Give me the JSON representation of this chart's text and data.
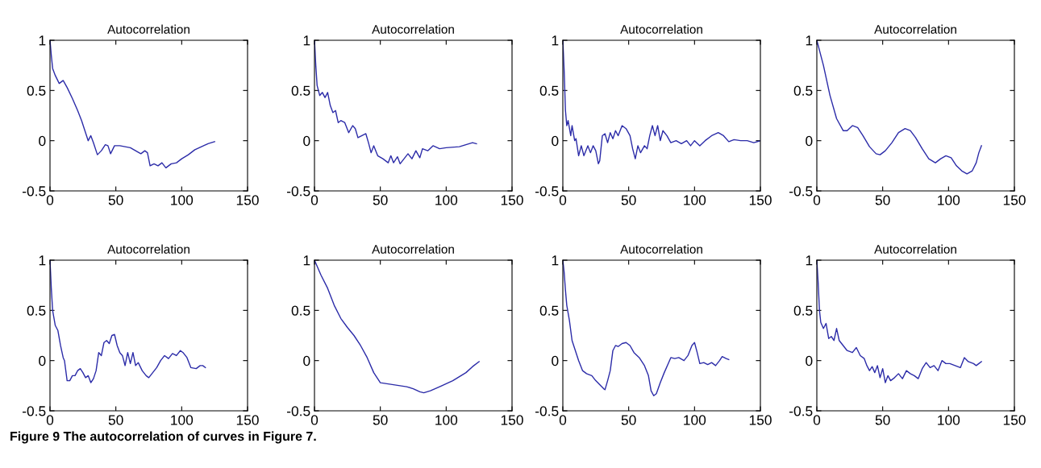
{
  "chart_data": [
    {
      "type": "line",
      "title": "Autocorrelation",
      "xlim": [
        0,
        150
      ],
      "ylim": [
        -0.5,
        1
      ],
      "xticks": [
        0,
        50,
        100,
        150
      ],
      "yticks": [
        -0.5,
        0,
        0.5,
        1
      ],
      "x": [
        0,
        1,
        2,
        4,
        7,
        10,
        13,
        17,
        21,
        24,
        27,
        29,
        31,
        33,
        36,
        39,
        42,
        44,
        46,
        49,
        53,
        57,
        61,
        65,
        69,
        72,
        74,
        76,
        79,
        82,
        85,
        88,
        92,
        96,
        100,
        105,
        110,
        115,
        120,
        125
      ],
      "series": [
        {
          "color": "#2b2ba8",
          "values": [
            1,
            0.85,
            0.72,
            0.65,
            0.57,
            0.6,
            0.53,
            0.42,
            0.3,
            0.2,
            0.08,
            0.0,
            0.05,
            -0.02,
            -0.14,
            -0.1,
            -0.04,
            -0.05,
            -0.13,
            -0.05,
            -0.05,
            -0.06,
            -0.07,
            -0.1,
            -0.13,
            -0.1,
            -0.12,
            -0.25,
            -0.23,
            -0.25,
            -0.22,
            -0.27,
            -0.23,
            -0.22,
            -0.18,
            -0.14,
            -0.09,
            -0.06,
            -0.03,
            -0.01
          ]
        }
      ]
    },
    {
      "type": "line",
      "title": "Autocorrelation",
      "xlim": [
        0,
        150
      ],
      "ylim": [
        -0.5,
        1
      ],
      "xticks": [
        0,
        50,
        100,
        150
      ],
      "yticks": [
        -0.5,
        0,
        0.5,
        1
      ],
      "x": [
        0,
        1,
        2,
        4,
        6,
        8,
        10,
        12,
        14,
        16,
        18,
        20,
        23,
        26,
        29,
        31,
        33,
        36,
        39,
        41,
        43,
        45,
        48,
        52,
        56,
        58,
        60,
        63,
        65,
        68,
        71,
        74,
        77,
        80,
        82,
        86,
        90,
        95,
        100,
        110,
        115,
        120,
        123
      ],
      "series": [
        {
          "color": "#2b2ba8",
          "values": [
            1,
            0.75,
            0.55,
            0.45,
            0.48,
            0.43,
            0.48,
            0.35,
            0.28,
            0.3,
            0.18,
            0.2,
            0.18,
            0.08,
            0.15,
            0.12,
            0.03,
            0.05,
            0.07,
            -0.02,
            -0.12,
            -0.05,
            -0.15,
            -0.18,
            -0.22,
            -0.15,
            -0.22,
            -0.16,
            -0.23,
            -0.18,
            -0.13,
            -0.18,
            -0.1,
            -0.17,
            -0.08,
            -0.1,
            -0.05,
            -0.08,
            -0.07,
            -0.06,
            -0.04,
            -0.02,
            -0.03
          ]
        }
      ]
    },
    {
      "type": "line",
      "title": "Autocorrelation",
      "xlim": [
        0,
        150
      ],
      "ylim": [
        -0.5,
        1
      ],
      "xticks": [
        0,
        50,
        100,
        150
      ],
      "yticks": [
        -0.5,
        0,
        0.5,
        1
      ],
      "x": [
        0,
        1,
        2,
        3,
        4,
        6,
        7,
        9,
        10,
        12,
        14,
        16,
        19,
        21,
        23,
        25,
        27,
        28,
        30,
        32,
        34,
        36,
        38,
        40,
        42,
        45,
        48,
        51,
        53,
        55,
        57,
        59,
        62,
        64,
        66,
        68,
        70,
        72,
        74,
        76,
        79,
        82,
        86,
        90,
        94,
        97,
        100,
        104,
        108,
        113,
        118,
        122,
        126,
        130,
        135,
        140,
        145,
        150
      ],
      "series": [
        {
          "color": "#2b2ba8",
          "values": [
            1,
            0.7,
            0.3,
            0.15,
            0.2,
            0.05,
            0.15,
            0.0,
            0.02,
            -0.15,
            -0.05,
            -0.15,
            -0.05,
            -0.12,
            -0.05,
            -0.1,
            -0.23,
            -0.2,
            0.05,
            0.07,
            -0.02,
            0.08,
            0.02,
            0.1,
            0.05,
            0.15,
            0.12,
            0.05,
            -0.08,
            -0.18,
            -0.05,
            -0.12,
            -0.05,
            -0.08,
            0.05,
            0.15,
            0.05,
            0.15,
            0.0,
            0.1,
            0.05,
            -0.02,
            0.0,
            -0.03,
            0.0,
            -0.05,
            0.0,
            -0.05,
            0.0,
            0.05,
            0.08,
            0.05,
            -0.01,
            0.01,
            0.0,
            0.0,
            -0.02,
            0.0
          ]
        }
      ]
    },
    {
      "type": "line",
      "title": "Autocorrelation",
      "xlim": [
        0,
        150
      ],
      "ylim": [
        -0.5,
        1
      ],
      "xticks": [
        0,
        50,
        100,
        150
      ],
      "yticks": [
        -0.5,
        0,
        0.5,
        1
      ],
      "x": [
        0,
        5,
        10,
        15,
        20,
        23,
        27,
        31,
        35,
        40,
        45,
        48,
        52,
        57,
        62,
        67,
        71,
        75,
        80,
        85,
        90,
        94,
        98,
        102,
        106,
        110,
        114,
        118,
        121,
        123,
        125
      ],
      "series": [
        {
          "color": "#2b2ba8",
          "values": [
            1,
            0.75,
            0.45,
            0.22,
            0.1,
            0.1,
            0.15,
            0.13,
            0.05,
            -0.06,
            -0.13,
            -0.14,
            -0.1,
            -0.02,
            0.08,
            0.12,
            0.1,
            0.03,
            -0.08,
            -0.18,
            -0.22,
            -0.18,
            -0.15,
            -0.17,
            -0.25,
            -0.3,
            -0.33,
            -0.3,
            -0.22,
            -0.12,
            -0.05
          ]
        }
      ]
    },
    {
      "type": "line",
      "title": "Autocorrelation",
      "xlim": [
        0,
        150
      ],
      "ylim": [
        -0.5,
        1
      ],
      "xticks": [
        0,
        50,
        100,
        150
      ],
      "yticks": [
        -0.5,
        0,
        0.5,
        1
      ],
      "x": [
        0,
        1,
        2,
        4,
        6,
        8,
        10,
        11,
        12,
        13,
        15,
        17,
        19,
        21,
        23,
        25,
        27,
        29,
        31,
        33,
        35,
        37,
        39,
        41,
        43,
        45,
        47,
        49,
        51,
        53,
        55,
        57,
        59,
        61,
        63,
        65,
        67,
        70,
        73,
        75,
        78,
        81,
        84,
        87,
        90,
        93,
        96,
        99,
        101,
        104,
        107,
        111,
        114,
        116,
        118
      ],
      "series": [
        {
          "color": "#2b2ba8",
          "values": [
            1,
            0.72,
            0.5,
            0.35,
            0.3,
            0.15,
            0.03,
            0.0,
            -0.1,
            -0.2,
            -0.2,
            -0.15,
            -0.15,
            -0.1,
            -0.08,
            -0.12,
            -0.17,
            -0.15,
            -0.22,
            -0.18,
            -0.1,
            0.08,
            0.05,
            0.18,
            0.2,
            0.17,
            0.25,
            0.26,
            0.15,
            0.08,
            0.05,
            -0.05,
            0.08,
            -0.03,
            0.08,
            -0.05,
            -0.02,
            -0.1,
            -0.15,
            -0.17,
            -0.12,
            -0.07,
            0.0,
            0.05,
            0.02,
            0.07,
            0.05,
            0.1,
            0.08,
            0.03,
            -0.07,
            -0.08,
            -0.05,
            -0.05,
            -0.07
          ]
        }
      ]
    },
    {
      "type": "line",
      "title": "Autocorrelation",
      "xlim": [
        0,
        150
      ],
      "ylim": [
        -0.5,
        1
      ],
      "xticks": [
        0,
        50,
        100,
        150
      ],
      "yticks": [
        -0.5,
        0,
        0.5,
        1
      ],
      "x": [
        0,
        5,
        10,
        15,
        20,
        25,
        30,
        35,
        40,
        45,
        50,
        55,
        60,
        65,
        70,
        75,
        80,
        83,
        88,
        95,
        100,
        105,
        110,
        115,
        120,
        125
      ],
      "series": [
        {
          "color": "#2b2ba8",
          "values": [
            1,
            0.85,
            0.72,
            0.55,
            0.42,
            0.33,
            0.25,
            0.15,
            0.03,
            -0.12,
            -0.22,
            -0.23,
            -0.24,
            -0.25,
            -0.26,
            -0.28,
            -0.31,
            -0.32,
            -0.3,
            -0.26,
            -0.23,
            -0.2,
            -0.16,
            -0.12,
            -0.06,
            -0.01
          ]
        }
      ]
    },
    {
      "type": "line",
      "title": "Autocorrelation",
      "xlim": [
        0,
        150
      ],
      "ylim": [
        -0.5,
        1
      ],
      "xticks": [
        0,
        50,
        100,
        150
      ],
      "yticks": [
        -0.5,
        0,
        0.5,
        1
      ],
      "x": [
        0,
        1,
        2,
        3,
        5,
        7,
        9,
        12,
        15,
        18,
        22,
        25,
        28,
        31,
        32,
        34,
        36,
        38,
        40,
        42,
        45,
        48,
        51,
        54,
        58,
        62,
        65,
        67,
        69,
        71,
        74,
        77,
        80,
        82,
        85,
        88,
        92,
        95,
        98,
        100,
        102,
        104,
        107,
        110,
        113,
        116,
        119,
        121,
        124,
        126
      ],
      "series": [
        {
          "color": "#2b2ba8",
          "values": [
            1,
            0.88,
            0.7,
            0.55,
            0.4,
            0.2,
            0.12,
            0.0,
            -0.1,
            -0.13,
            -0.15,
            -0.2,
            -0.24,
            -0.28,
            -0.29,
            -0.2,
            -0.1,
            0.1,
            0.15,
            0.14,
            0.17,
            0.18,
            0.15,
            0.08,
            0.03,
            -0.05,
            -0.15,
            -0.3,
            -0.35,
            -0.33,
            -0.22,
            -0.12,
            -0.03,
            0.03,
            0.02,
            0.03,
            0.0,
            0.05,
            0.15,
            0.18,
            0.08,
            -0.03,
            -0.02,
            -0.04,
            -0.02,
            -0.05,
            0.0,
            0.04,
            0.02,
            0.01
          ]
        }
      ]
    },
    {
      "type": "line",
      "title": "Autocorrelation",
      "xlim": [
        0,
        150
      ],
      "ylim": [
        -0.5,
        1
      ],
      "xticks": [
        0,
        50,
        100,
        150
      ],
      "yticks": [
        -0.5,
        0,
        0.5,
        1
      ],
      "x": [
        0,
        1,
        2,
        3,
        5,
        7,
        9,
        11,
        13,
        15,
        17,
        20,
        23,
        27,
        30,
        33,
        36,
        38,
        40,
        42,
        44,
        46,
        48,
        50,
        52,
        54,
        56,
        59,
        62,
        65,
        68,
        71,
        74,
        77,
        80,
        83,
        86,
        89,
        92,
        95,
        98,
        101,
        105,
        109,
        112,
        115,
        119,
        121,
        123,
        125
      ],
      "series": [
        {
          "color": "#2b2ba8",
          "values": [
            1,
            0.78,
            0.5,
            0.38,
            0.32,
            0.37,
            0.22,
            0.24,
            0.2,
            0.32,
            0.2,
            0.15,
            0.1,
            0.08,
            0.13,
            0.05,
            0.02,
            -0.05,
            -0.1,
            -0.06,
            -0.12,
            -0.05,
            -0.17,
            -0.08,
            -0.22,
            -0.15,
            -0.2,
            -0.17,
            -0.13,
            -0.18,
            -0.1,
            -0.13,
            -0.15,
            -0.18,
            -0.08,
            -0.02,
            -0.07,
            -0.05,
            -0.1,
            0.0,
            -0.03,
            -0.03,
            -0.05,
            -0.07,
            0.03,
            -0.01,
            -0.03,
            -0.05,
            -0.03,
            -0.01
          ]
        }
      ],
      "annotations": [
        "Figure 9 The autocorrelation of curves in Figure 7."
      ]
    }
  ]
}
